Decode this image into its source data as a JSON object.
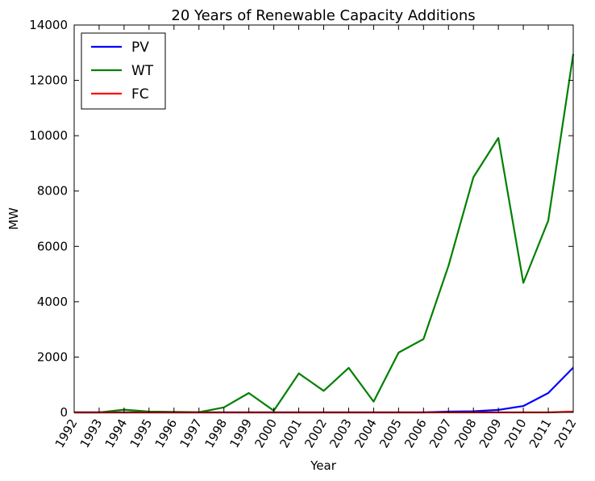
{
  "chart_data": {
    "type": "line",
    "title": "20 Years of Renewable Capacity Additions",
    "xlabel": "Year",
    "ylabel": "MW",
    "x": [
      1992,
      1993,
      1994,
      1995,
      1996,
      1997,
      1998,
      1999,
      2000,
      2001,
      2002,
      2003,
      2004,
      2005,
      2006,
      2007,
      2008,
      2009,
      2010,
      2011,
      2012
    ],
    "xlim": [
      1992,
      2012
    ],
    "ylim": [
      0,
      14000
    ],
    "yticks": [
      0,
      2000,
      4000,
      6000,
      8000,
      10000,
      12000,
      14000
    ],
    "xtick_rotation": -60,
    "grid": false,
    "legend_position": "top-left",
    "series": [
      {
        "name": "PV",
        "color": "#0000ff",
        "values": [
          0,
          0,
          0,
          0,
          0,
          0,
          0,
          0,
          0,
          0,
          0,
          0,
          0,
          0,
          0,
          30,
          40,
          90,
          230,
          700,
          1620
        ]
      },
      {
        "name": "WT",
        "color": "#008000",
        "values": [
          0,
          0,
          100,
          30,
          20,
          10,
          180,
          700,
          60,
          1410,
          780,
          1610,
          390,
          2160,
          2650,
          5300,
          8500,
          9920,
          4680,
          6930,
          12950
        ]
      },
      {
        "name": "FC",
        "color": "#ff0000",
        "values": [
          0,
          0,
          0,
          0,
          0,
          0,
          0,
          0,
          0,
          0,
          0,
          0,
          0,
          0,
          0,
          0,
          0,
          0,
          0,
          0,
          30
        ]
      }
    ]
  }
}
